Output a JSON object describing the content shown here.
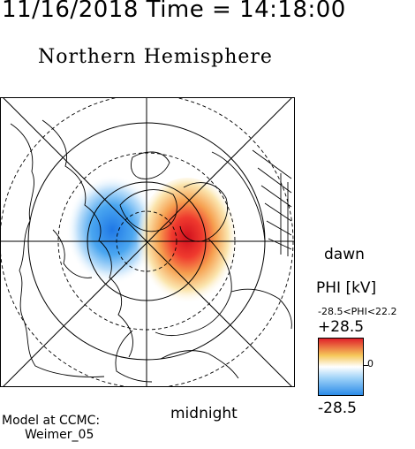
{
  "header": {
    "date": "11/16/2018",
    "time_text": "Time = 14:18:00"
  },
  "title": "Northern Hemisphere",
  "labels": {
    "dawn": "dawn",
    "midnight": "midnight"
  },
  "colorbar": {
    "title": "PHI [kV]",
    "range_text": "-28.5<PHI<22.2",
    "max_label": "+28.5",
    "mid_label": "0",
    "min_label": "-28.5",
    "colors": {
      "max": "#e0202a",
      "mid": "#ffffff",
      "min": "#2a8be8",
      "high": "#f6c85a"
    }
  },
  "credit": {
    "line1": "Model at CCMC:",
    "line2": "Weimer_05"
  },
  "map": {
    "grid_style": {
      "latitude_circles": "dashed",
      "meridians": "solid"
    },
    "potential_cells": [
      {
        "sign": "negative",
        "color": "#2f86e6"
      },
      {
        "sign": "positive",
        "color": "#e8222a"
      }
    ]
  }
}
